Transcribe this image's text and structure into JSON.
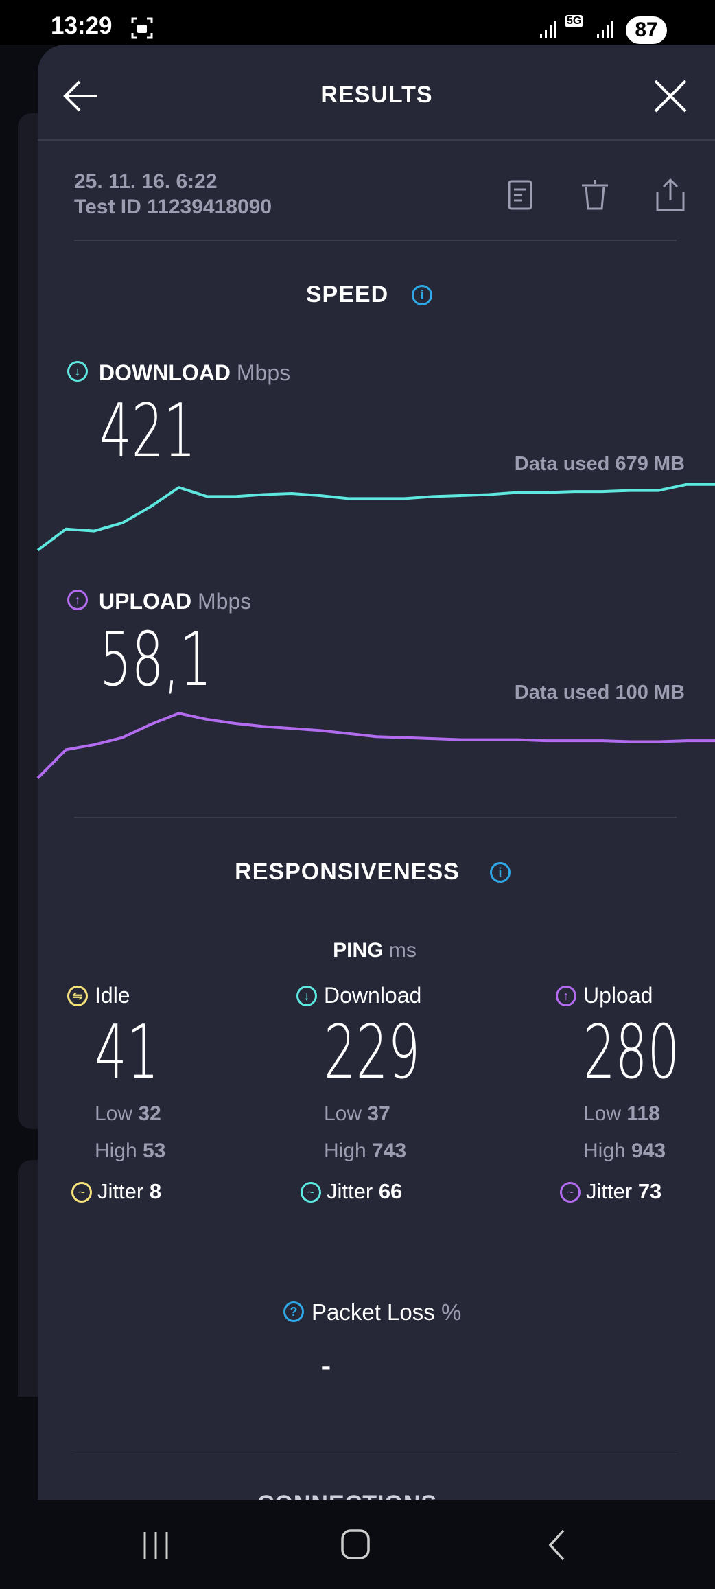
{
  "status_bar": {
    "time": "13:29",
    "network": "5G",
    "battery": "87"
  },
  "header": {
    "title": "RESULTS",
    "back_icon": "arrow-left-icon",
    "close_icon": "close-icon"
  },
  "meta": {
    "date": "25. 11. 16. 6:22",
    "test_id": "Test ID 11239418090"
  },
  "actions": [
    "document-icon",
    "trash-icon",
    "share-icon"
  ],
  "speed": {
    "title": "SPEED",
    "download": {
      "label": "DOWNLOAD",
      "unit": "Mbps",
      "value": "421",
      "data_used": "Data used 679 MB",
      "color": "#5ee8e0",
      "samples": [
        7,
        28,
        26,
        34,
        50,
        69,
        60,
        60,
        62,
        63,
        61,
        58,
        58,
        58,
        60,
        61,
        62,
        64,
        64,
        65,
        65,
        66,
        66,
        72,
        72
      ]
    },
    "upload": {
      "label": "UPLOAD",
      "unit": "Mbps",
      "value": "58,1",
      "data_used": "Data used 100 MB",
      "color": "#b36cf0",
      "samples": [
        7,
        35,
        40,
        47,
        60,
        71,
        65,
        61,
        58,
        56,
        54,
        51,
        48,
        47,
        46,
        45,
        45,
        45,
        44,
        44,
        44,
        43,
        43,
        44,
        44
      ]
    }
  },
  "responsiveness": {
    "title": "RESPONSIVENESS",
    "ping_label": "PING",
    "ping_unit": "ms",
    "columns": [
      {
        "label": "Idle",
        "value": "41",
        "low_label": "Low",
        "low": "32",
        "high_label": "High",
        "high": "53",
        "jitter_label": "Jitter",
        "jitter": "8",
        "color": "#f5e27a"
      },
      {
        "label": "Download",
        "value": "229",
        "low_label": "Low",
        "low": "37",
        "high_label": "High",
        "high": "743",
        "jitter_label": "Jitter",
        "jitter": "66",
        "color": "#5ee8e0"
      },
      {
        "label": "Upload",
        "value": "280",
        "low_label": "Low",
        "low": "118",
        "high_label": "High",
        "high": "943",
        "jitter_label": "Jitter",
        "jitter": "73",
        "color": "#b36cf0"
      }
    ],
    "packet_loss": {
      "label": "Packet Loss",
      "unit": "%",
      "value": "-"
    }
  },
  "next_section": "CONNECTIONS",
  "accent": "#2fa8e8"
}
